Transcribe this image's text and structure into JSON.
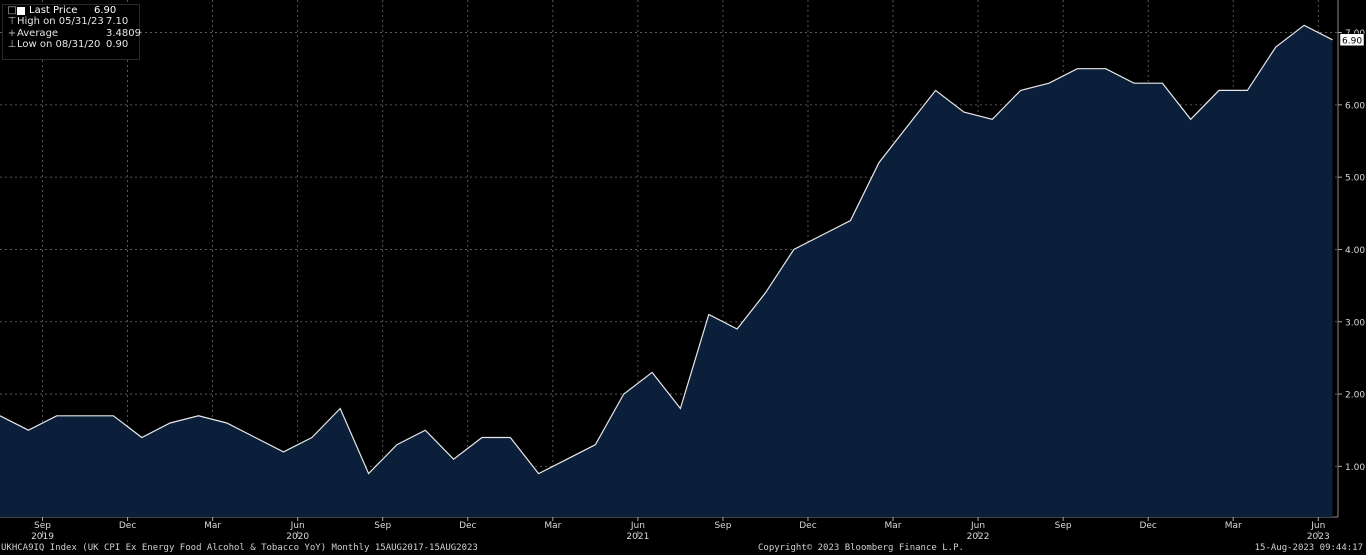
{
  "legend": {
    "rows": [
      {
        "symbol": "□",
        "label": "Last Price",
        "value": "6.90"
      },
      {
        "symbol": "⊤",
        "label": "High on 05/31/23",
        "value": "7.10"
      },
      {
        "symbol": "+",
        "label": "Average",
        "value": "3.4809"
      },
      {
        "symbol": "⊥",
        "label": "Low on 08/31/20",
        "value": "0.90"
      }
    ]
  },
  "footer": {
    "left": "UKHCA9IQ Index (UK CPI Ex Energy Food Alcohol & Tobacco YoY)  Monthly 15AUG2017-15AUG2023",
    "center": "Copyright© 2023 Bloomberg Finance L.P.",
    "right": "15-Aug-2023 09:44:17"
  },
  "colors": {
    "background": "#000000",
    "area_fill": "#0b1f3a",
    "line": "#e8e8e8",
    "grid": "#6a6a6a",
    "text": "#d9d9d9"
  },
  "chart_data": {
    "type": "area",
    "title": "",
    "xlabel": "",
    "ylabel": "",
    "ylim": [
      0.3,
      7.45
    ],
    "y_ticks": [
      "1.00",
      "2.00",
      "3.00",
      "4.00",
      "5.00",
      "6.00",
      "7.00"
    ],
    "y_axis_side": "right",
    "grid": true,
    "last_value_label": "6.90",
    "x_tick_labels": [
      "Sep",
      "Dec",
      "Mar",
      "Jun",
      "Sep",
      "Dec",
      "Mar",
      "Jun",
      "Sep",
      "Dec",
      "Mar",
      "Jun",
      "Sep",
      "Dec",
      "Mar",
      "Jun"
    ],
    "year_labels": [
      {
        "label": "2019",
        "after_tick": 0
      },
      {
        "label": "2020",
        "after_tick": 3
      },
      {
        "label": "2021",
        "after_tick": 7
      },
      {
        "label": "2022",
        "after_tick": 11
      },
      {
        "label": "2023",
        "after_tick": 15
      }
    ],
    "series": [
      {
        "name": "Last Price",
        "x": [
          "2019-07",
          "2019-08",
          "2019-09",
          "2019-10",
          "2019-11",
          "2019-12",
          "2020-01",
          "2020-02",
          "2020-03",
          "2020-04",
          "2020-05",
          "2020-06",
          "2020-07",
          "2020-08",
          "2020-09",
          "2020-10",
          "2020-11",
          "2020-12",
          "2021-01",
          "2021-02",
          "2021-03",
          "2021-04",
          "2021-05",
          "2021-06",
          "2021-07",
          "2021-08",
          "2021-09",
          "2021-10",
          "2021-11",
          "2021-12",
          "2022-01",
          "2022-02",
          "2022-03",
          "2022-04",
          "2022-05",
          "2022-06",
          "2022-07",
          "2022-08",
          "2022-09",
          "2022-10",
          "2022-11",
          "2022-12",
          "2023-01",
          "2023-02",
          "2023-03",
          "2023-04",
          "2023-05",
          "2023-06"
        ],
        "values": [
          1.7,
          1.5,
          1.7,
          1.7,
          1.7,
          1.4,
          1.6,
          1.7,
          1.6,
          1.4,
          1.2,
          1.4,
          1.8,
          0.9,
          1.3,
          1.5,
          1.1,
          1.4,
          1.4,
          0.9,
          1.1,
          1.3,
          2.0,
          2.3,
          1.8,
          3.1,
          2.9,
          3.4,
          4.0,
          4.2,
          4.4,
          5.2,
          5.7,
          6.2,
          5.9,
          5.8,
          6.2,
          6.3,
          6.5,
          6.5,
          6.3,
          6.3,
          5.8,
          6.2,
          6.2,
          6.8,
          7.1,
          6.9
        ]
      }
    ]
  }
}
